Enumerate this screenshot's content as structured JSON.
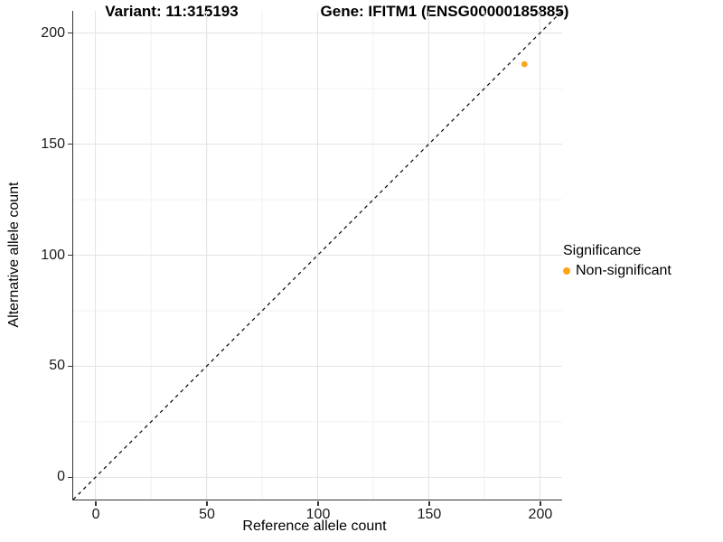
{
  "chart_data": {
    "type": "scatter",
    "title_left": "Variant: 11:315193",
    "title_right": "Gene: IFITM1 (ENSG00000185885)",
    "xlabel": "Reference allele count",
    "ylabel": "Alternative allele count",
    "xlim": [
      -10,
      210
    ],
    "ylim": [
      -10,
      210
    ],
    "x_ticks": [
      0,
      50,
      100,
      150,
      200
    ],
    "y_ticks": [
      0,
      50,
      100,
      150,
      200
    ],
    "x_minor_ticks": [
      25,
      75,
      125,
      175
    ],
    "y_minor_ticks": [
      25,
      75,
      125,
      175
    ],
    "grid": "major and minor, light gray, on white background",
    "series": [
      {
        "name": "Non-significant",
        "color": "#FFA319",
        "points": [
          {
            "x": 193,
            "y": 186
          }
        ]
      }
    ],
    "reference_line": {
      "type": "identity y=x",
      "style": "dashed",
      "color": "#000000"
    },
    "legend": {
      "title": "Significance",
      "position": "right",
      "entries": [
        {
          "label": "Non-significant",
          "color": "#FFA319"
        }
      ]
    },
    "colors": {
      "grid_major": "#E4E4E4",
      "grid_minor": "#F1F1F1",
      "axis_line": "#333333",
      "tick_text": "#1a1a1a"
    }
  }
}
